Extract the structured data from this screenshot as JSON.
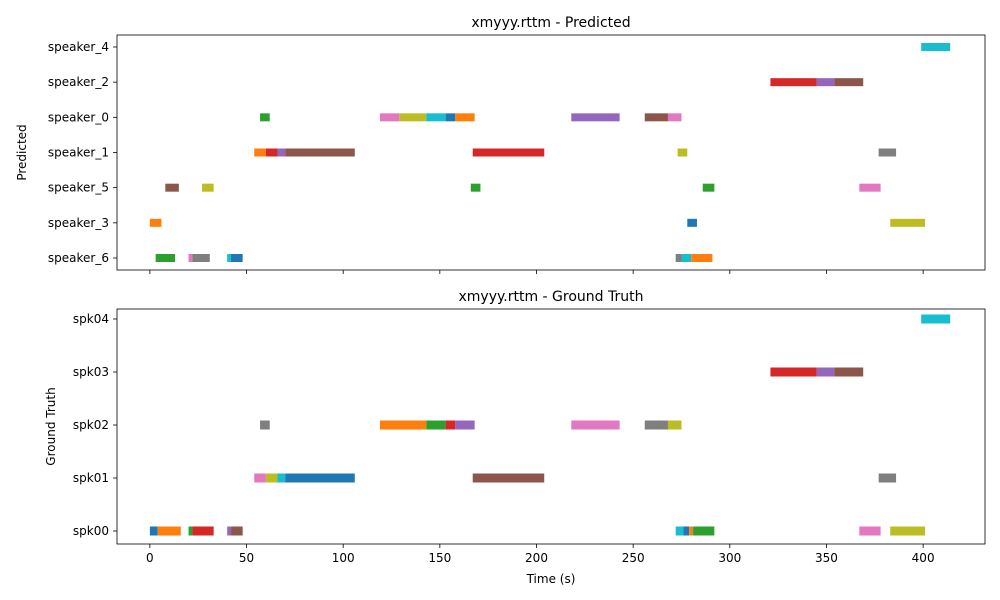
{
  "chart_data": [
    {
      "type": "timeline",
      "title": "xmyyy.rttm - Predicted",
      "ylabel": "Predicted",
      "xlabel": "",
      "xlim": [
        -17,
        432
      ],
      "xticks": [
        0,
        50,
        100,
        150,
        200,
        250,
        300,
        350,
        400
      ],
      "xtick_labels_visible": false,
      "categories": [
        "speaker_4",
        "speaker_2",
        "speaker_0",
        "speaker_1",
        "speaker_5",
        "speaker_3",
        "speaker_6"
      ],
      "segments": [
        {
          "speaker": "speaker_4",
          "start": 399,
          "end": 414,
          "color": "#17becf"
        },
        {
          "speaker": "speaker_2",
          "start": 321,
          "end": 345,
          "color": "#d62728"
        },
        {
          "speaker": "speaker_2",
          "start": 345,
          "end": 354,
          "color": "#9467bd"
        },
        {
          "speaker": "speaker_2",
          "start": 354,
          "end": 369,
          "color": "#8c564b"
        },
        {
          "speaker": "speaker_0",
          "start": 57,
          "end": 62,
          "color": "#2ca02c"
        },
        {
          "speaker": "speaker_0",
          "start": 119,
          "end": 129,
          "color": "#e377c2"
        },
        {
          "speaker": "speaker_0",
          "start": 129,
          "end": 143,
          "color": "#bcbd22"
        },
        {
          "speaker": "speaker_0",
          "start": 143,
          "end": 153,
          "color": "#17becf"
        },
        {
          "speaker": "speaker_0",
          "start": 153,
          "end": 158,
          "color": "#1f77b4"
        },
        {
          "speaker": "speaker_0",
          "start": 158,
          "end": 168,
          "color": "#ff7f0e"
        },
        {
          "speaker": "speaker_0",
          "start": 218,
          "end": 243,
          "color": "#9467bd"
        },
        {
          "speaker": "speaker_0",
          "start": 256,
          "end": 268,
          "color": "#8c564b"
        },
        {
          "speaker": "speaker_0",
          "start": 268,
          "end": 275,
          "color": "#e377c2"
        },
        {
          "speaker": "speaker_1",
          "start": 54,
          "end": 60,
          "color": "#ff7f0e"
        },
        {
          "speaker": "speaker_1",
          "start": 60,
          "end": 66,
          "color": "#d62728"
        },
        {
          "speaker": "speaker_1",
          "start": 66,
          "end": 70,
          "color": "#9467bd"
        },
        {
          "speaker": "speaker_1",
          "start": 70,
          "end": 106,
          "color": "#8c564b"
        },
        {
          "speaker": "speaker_1",
          "start": 167,
          "end": 204,
          "color": "#d62728"
        },
        {
          "speaker": "speaker_1",
          "start": 273,
          "end": 278,
          "color": "#bcbd22"
        },
        {
          "speaker": "speaker_1",
          "start": 377,
          "end": 386,
          "color": "#7f7f7f"
        },
        {
          "speaker": "speaker_5",
          "start": 8,
          "end": 15,
          "color": "#8c564b"
        },
        {
          "speaker": "speaker_5",
          "start": 27,
          "end": 33,
          "color": "#bcbd22"
        },
        {
          "speaker": "speaker_5",
          "start": 166,
          "end": 171,
          "color": "#2ca02c"
        },
        {
          "speaker": "speaker_5",
          "start": 286,
          "end": 292,
          "color": "#2ca02c"
        },
        {
          "speaker": "speaker_5",
          "start": 367,
          "end": 378,
          "color": "#e377c2"
        },
        {
          "speaker": "speaker_3",
          "start": 0,
          "end": 6,
          "color": "#ff7f0e"
        },
        {
          "speaker": "speaker_3",
          "start": 278,
          "end": 283,
          "color": "#1f77b4"
        },
        {
          "speaker": "speaker_3",
          "start": 383,
          "end": 401,
          "color": "#bcbd22"
        },
        {
          "speaker": "speaker_6",
          "start": 3,
          "end": 13,
          "color": "#2ca02c"
        },
        {
          "speaker": "speaker_6",
          "start": 20,
          "end": 22,
          "color": "#e377c2"
        },
        {
          "speaker": "speaker_6",
          "start": 22,
          "end": 31,
          "color": "#7f7f7f"
        },
        {
          "speaker": "speaker_6",
          "start": 40,
          "end": 42,
          "color": "#17becf"
        },
        {
          "speaker": "speaker_6",
          "start": 42,
          "end": 48,
          "color": "#1f77b4"
        },
        {
          "speaker": "speaker_6",
          "start": 272,
          "end": 275,
          "color": "#7f7f7f"
        },
        {
          "speaker": "speaker_6",
          "start": 275,
          "end": 280,
          "color": "#17becf"
        },
        {
          "speaker": "speaker_6",
          "start": 280,
          "end": 291,
          "color": "#ff7f0e"
        }
      ]
    },
    {
      "type": "timeline",
      "title": "xmyyy.rttm - Ground Truth",
      "ylabel": "Ground Truth",
      "xlabel": "Time (s)",
      "xlim": [
        -17,
        432
      ],
      "xticks": [
        0,
        50,
        100,
        150,
        200,
        250,
        300,
        350,
        400
      ],
      "xtick_labels_visible": true,
      "categories": [
        "spk04",
        "spk03",
        "spk02",
        "spk01",
        "spk00"
      ],
      "segments": [
        {
          "speaker": "spk04",
          "start": 399,
          "end": 414,
          "color": "#17becf"
        },
        {
          "speaker": "spk03",
          "start": 321,
          "end": 345,
          "color": "#d62728"
        },
        {
          "speaker": "spk03",
          "start": 345,
          "end": 354,
          "color": "#9467bd"
        },
        {
          "speaker": "spk03",
          "start": 354,
          "end": 369,
          "color": "#8c564b"
        },
        {
          "speaker": "spk02",
          "start": 57,
          "end": 62,
          "color": "#7f7f7f"
        },
        {
          "speaker": "spk02",
          "start": 119,
          "end": 143,
          "color": "#ff7f0e"
        },
        {
          "speaker": "spk02",
          "start": 143,
          "end": 153,
          "color": "#2ca02c"
        },
        {
          "speaker": "spk02",
          "start": 153,
          "end": 158,
          "color": "#d62728"
        },
        {
          "speaker": "spk02",
          "start": 158,
          "end": 168,
          "color": "#9467bd"
        },
        {
          "speaker": "spk02",
          "start": 218,
          "end": 243,
          "color": "#e377c2"
        },
        {
          "speaker": "spk02",
          "start": 256,
          "end": 268,
          "color": "#7f7f7f"
        },
        {
          "speaker": "spk02",
          "start": 268,
          "end": 275,
          "color": "#bcbd22"
        },
        {
          "speaker": "spk01",
          "start": 54,
          "end": 60,
          "color": "#e377c2"
        },
        {
          "speaker": "spk01",
          "start": 60,
          "end": 66,
          "color": "#bcbd22"
        },
        {
          "speaker": "spk01",
          "start": 66,
          "end": 70,
          "color": "#17becf"
        },
        {
          "speaker": "spk01",
          "start": 70,
          "end": 106,
          "color": "#1f77b4"
        },
        {
          "speaker": "spk01",
          "start": 167,
          "end": 204,
          "color": "#8c564b"
        },
        {
          "speaker": "spk01",
          "start": 377,
          "end": 386,
          "color": "#7f7f7f"
        },
        {
          "speaker": "spk00",
          "start": 0,
          "end": 4,
          "color": "#1f77b4"
        },
        {
          "speaker": "spk00",
          "start": 4,
          "end": 16,
          "color": "#ff7f0e"
        },
        {
          "speaker": "spk00",
          "start": 20,
          "end": 22,
          "color": "#2ca02c"
        },
        {
          "speaker": "spk00",
          "start": 22,
          "end": 33,
          "color": "#d62728"
        },
        {
          "speaker": "spk00",
          "start": 40,
          "end": 42,
          "color": "#9467bd"
        },
        {
          "speaker": "spk00",
          "start": 42,
          "end": 48,
          "color": "#8c564b"
        },
        {
          "speaker": "spk00",
          "start": 272,
          "end": 276,
          "color": "#17becf"
        },
        {
          "speaker": "spk00",
          "start": 276,
          "end": 279,
          "color": "#1f77b4"
        },
        {
          "speaker": "spk00",
          "start": 279,
          "end": 281,
          "color": "#ff7f0e"
        },
        {
          "speaker": "spk00",
          "start": 281,
          "end": 292,
          "color": "#2ca02c"
        },
        {
          "speaker": "spk00",
          "start": 367,
          "end": 378,
          "color": "#e377c2"
        },
        {
          "speaker": "spk00",
          "start": 383,
          "end": 401,
          "color": "#bcbd22"
        }
      ]
    }
  ]
}
